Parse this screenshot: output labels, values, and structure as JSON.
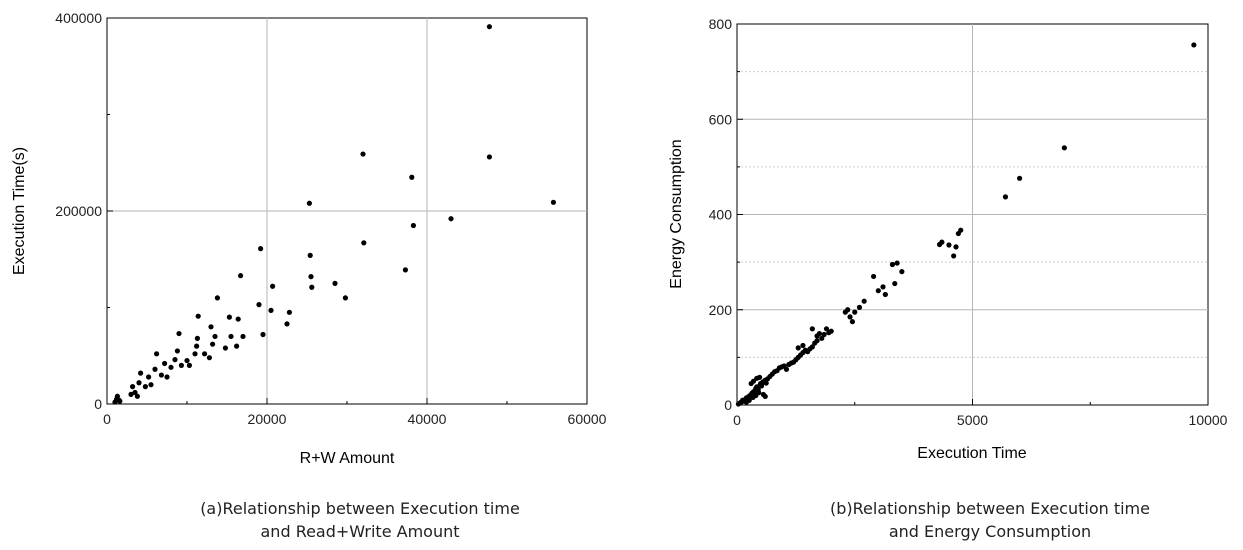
{
  "chart_data": [
    {
      "type": "scatter",
      "xlabel": "R+W Amount",
      "ylabel": "Execution Time(s)",
      "xlim": [
        0,
        60000
      ],
      "ylim": [
        0,
        400000
      ],
      "xticks": [
        "0",
        "20000",
        "40000",
        "60000"
      ],
      "yticks": [
        "0",
        "200000",
        "400000"
      ],
      "grid": true,
      "caption_lines": [
        "(a)Relationship between Execution time",
        "and Read+Write Amount"
      ],
      "color": "#000000",
      "points": [
        [
          1000,
          2000
        ],
        [
          1200,
          5000
        ],
        [
          1300,
          8000
        ],
        [
          1500,
          4000
        ],
        [
          1600,
          3000
        ],
        [
          3000,
          10000
        ],
        [
          3200,
          18000
        ],
        [
          3500,
          12000
        ],
        [
          3800,
          8000
        ],
        [
          4000,
          22000
        ],
        [
          4200,
          32000
        ],
        [
          4800,
          18000
        ],
        [
          5200,
          28000
        ],
        [
          5500,
          20000
        ],
        [
          6000,
          36000
        ],
        [
          6200,
          52000
        ],
        [
          6800,
          30000
        ],
        [
          7200,
          42000
        ],
        [
          7500,
          28000
        ],
        [
          8000,
          38000
        ],
        [
          8500,
          46000
        ],
        [
          8800,
          55000
        ],
        [
          9000,
          73000
        ],
        [
          9300,
          40000
        ],
        [
          10000,
          45000
        ],
        [
          10300,
          40000
        ],
        [
          11000,
          52000
        ],
        [
          11200,
          60000
        ],
        [
          11300,
          68000
        ],
        [
          11400,
          91000
        ],
        [
          12200,
          52000
        ],
        [
          12800,
          48000
        ],
        [
          13000,
          80000
        ],
        [
          13200,
          62000
        ],
        [
          13500,
          70000
        ],
        [
          13800,
          110000
        ],
        [
          14800,
          58000
        ],
        [
          15300,
          90000
        ],
        [
          15500,
          70000
        ],
        [
          16200,
          60000
        ],
        [
          16400,
          88000
        ],
        [
          16700,
          133000
        ],
        [
          17000,
          70000
        ],
        [
          19000,
          103000
        ],
        [
          19200,
          161000
        ],
        [
          19500,
          72000
        ],
        [
          20500,
          97000
        ],
        [
          20700,
          122000
        ],
        [
          22500,
          83000
        ],
        [
          22800,
          95000
        ],
        [
          25300,
          208000
        ],
        [
          25400,
          154000
        ],
        [
          25500,
          132000
        ],
        [
          25600,
          121000
        ],
        [
          28500,
          125000
        ],
        [
          29800,
          110000
        ],
        [
          32000,
          259000
        ],
        [
          32100,
          167000
        ],
        [
          37300,
          139000
        ],
        [
          38100,
          235000
        ],
        [
          38300,
          185000
        ],
        [
          43000,
          192000
        ],
        [
          47800,
          391000
        ],
        [
          47800,
          256000
        ],
        [
          55800,
          209000
        ]
      ]
    },
    {
      "type": "scatter",
      "xlabel": "Execution Time",
      "ylabel": "Energy Consumption",
      "xlim": [
        0,
        10000
      ],
      "ylim": [
        0,
        800
      ],
      "xticks": [
        "0",
        "5000",
        "10000"
      ],
      "yticks": [
        "0",
        "200",
        "400",
        "600",
        "800"
      ],
      "grid": true,
      "caption_lines": [
        "(b)Relationship between Execution time",
        "and Energy Consumption"
      ],
      "color": "#000000",
      "points": [
        [
          30,
          2
        ],
        [
          60,
          4
        ],
        [
          90,
          6
        ],
        [
          120,
          10
        ],
        [
          150,
          8
        ],
        [
          180,
          12
        ],
        [
          200,
          15
        ],
        [
          220,
          14
        ],
        [
          250,
          18
        ],
        [
          280,
          20
        ],
        [
          300,
          22
        ],
        [
          320,
          25
        ],
        [
          350,
          28
        ],
        [
          380,
          30
        ],
        [
          400,
          35
        ],
        [
          420,
          38
        ],
        [
          450,
          32
        ],
        [
          480,
          40
        ],
        [
          500,
          45
        ],
        [
          520,
          42
        ],
        [
          550,
          48
        ],
        [
          580,
          50
        ],
        [
          600,
          52
        ],
        [
          620,
          46
        ],
        [
          650,
          55
        ],
        [
          300,
          45
        ],
        [
          350,
          50
        ],
        [
          420,
          56
        ],
        [
          480,
          58
        ],
        [
          520,
          40
        ],
        [
          560,
          22
        ],
        [
          600,
          18
        ],
        [
          460,
          26
        ],
        [
          400,
          20
        ],
        [
          340,
          16
        ],
        [
          260,
          10
        ],
        [
          200,
          6
        ],
        [
          700,
          60
        ],
        [
          750,
          65
        ],
        [
          800,
          70
        ],
        [
          850,
          72
        ],
        [
          900,
          78
        ],
        [
          950,
          80
        ],
        [
          1000,
          82
        ],
        [
          1050,
          75
        ],
        [
          1100,
          85
        ],
        [
          1150,
          88
        ],
        [
          1200,
          90
        ],
        [
          1250,
          95
        ],
        [
          1300,
          100
        ],
        [
          1350,
          105
        ],
        [
          1400,
          110
        ],
        [
          1450,
          115
        ],
        [
          1500,
          112
        ],
        [
          1550,
          118
        ],
        [
          1600,
          122
        ],
        [
          1650,
          130
        ],
        [
          1700,
          145
        ],
        [
          1750,
          150
        ],
        [
          1800,
          140
        ],
        [
          1850,
          148
        ],
        [
          1900,
          160
        ],
        [
          1950,
          152
        ],
        [
          2000,
          155
        ],
        [
          1300,
          120
        ],
        [
          1400,
          125
        ],
        [
          1600,
          160
        ],
        [
          1700,
          135
        ],
        [
          2300,
          195
        ],
        [
          2350,
          200
        ],
        [
          2400,
          185
        ],
        [
          2450,
          175
        ],
        [
          2500,
          195
        ],
        [
          2600,
          205
        ],
        [
          2700,
          218
        ],
        [
          2900,
          270
        ],
        [
          3000,
          240
        ],
        [
          3100,
          248
        ],
        [
          3150,
          232
        ],
        [
          3300,
          295
        ],
        [
          3350,
          255
        ],
        [
          3400,
          298
        ],
        [
          3500,
          280
        ],
        [
          4300,
          337
        ],
        [
          4350,
          342
        ],
        [
          4500,
          336
        ],
        [
          4600,
          313
        ],
        [
          4650,
          332
        ],
        [
          4700,
          360
        ],
        [
          4750,
          367
        ],
        [
          5700,
          437
        ],
        [
          6000,
          476
        ],
        [
          6950,
          540
        ],
        [
          9700,
          756
        ]
      ]
    }
  ],
  "captions": {
    "a_line1": "(a)Relationship between Execution time",
    "a_line2": "and Read+Write Amount",
    "b_line1": "(b)Relationship between Execution time",
    "b_line2": "and Energy Consumption"
  }
}
